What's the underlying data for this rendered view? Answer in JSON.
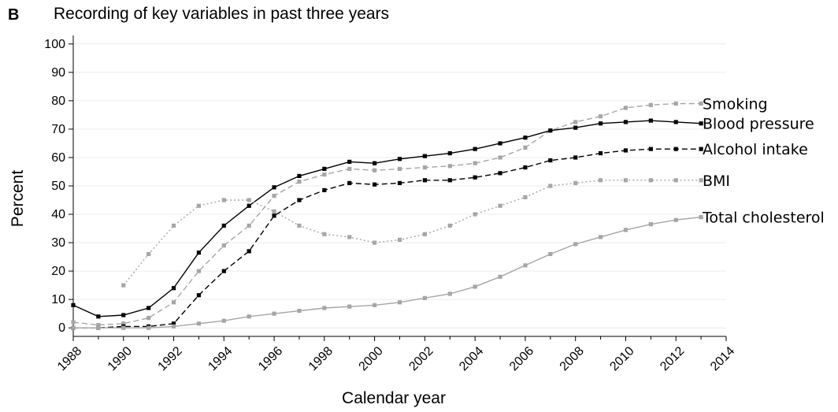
{
  "panel_label": "B",
  "chart_data": {
    "type": "line",
    "title": "Recording of key variables in past three years",
    "xlabel": "Calendar year",
    "ylabel": "Percent",
    "xlim": [
      1988,
      2014
    ],
    "ylim": [
      -3,
      103
    ],
    "xticks": [
      1988,
      1990,
      1992,
      1994,
      1996,
      1998,
      2000,
      2002,
      2004,
      2006,
      2008,
      2010,
      2012,
      2014
    ],
    "yticks": [
      0,
      10,
      20,
      30,
      40,
      50,
      60,
      70,
      80,
      90,
      100
    ],
    "grid": true,
    "legend": "direct labels at right end of lines",
    "series": [
      {
        "name": "Smoking",
        "color": "#a6a6a6",
        "line_style": "dashed",
        "x": [
          1988,
          1989,
          1990,
          1991,
          1992,
          1993,
          1994,
          1995,
          1996,
          1997,
          1998,
          1999,
          2000,
          2001,
          2002,
          2003,
          2004,
          2005,
          2006,
          2007,
          2008,
          2009,
          2010,
          2011,
          2012,
          2013
        ],
        "values": [
          2,
          1,
          1.5,
          3.5,
          9,
          20,
          29,
          36,
          46.5,
          51.5,
          54,
          56,
          55.5,
          56,
          56.5,
          57,
          58,
          60,
          63.5,
          69.5,
          72.5,
          74.5,
          77.5,
          78.5,
          79,
          79
        ]
      },
      {
        "name": "Blood pressure",
        "color": "#000000",
        "line_style": "solid",
        "x": [
          1988,
          1989,
          1990,
          1991,
          1992,
          1993,
          1994,
          1995,
          1996,
          1997,
          1998,
          1999,
          2000,
          2001,
          2002,
          2003,
          2004,
          2005,
          2006,
          2007,
          2008,
          2009,
          2010,
          2011,
          2012,
          2013
        ],
        "values": [
          8,
          4,
          4.5,
          7,
          14,
          26.5,
          36,
          43,
          49.5,
          53.5,
          56,
          58.5,
          58,
          59.5,
          60.5,
          61.5,
          63,
          65,
          67,
          69.5,
          70.5,
          72,
          72.5,
          73,
          72.5,
          72
        ]
      },
      {
        "name": "Alcohol intake",
        "color": "#000000",
        "line_style": "dashed",
        "x": [
          1988,
          1989,
          1990,
          1991,
          1992,
          1993,
          1994,
          1995,
          1996,
          1997,
          1998,
          1999,
          2000,
          2001,
          2002,
          2003,
          2004,
          2005,
          2006,
          2007,
          2008,
          2009,
          2010,
          2011,
          2012,
          2013
        ],
        "values": [
          0,
          0,
          0.5,
          0.5,
          1.5,
          11.5,
          20,
          27,
          39.5,
          45,
          48.5,
          51,
          50.5,
          51,
          52,
          52,
          53,
          54.5,
          56.5,
          59,
          60,
          61.5,
          62.5,
          63,
          63,
          63
        ]
      },
      {
        "name": "BMI",
        "color": "#a6a6a6",
        "line_style": "dotted",
        "x": [
          1990,
          1991,
          1992,
          1993,
          1994,
          1995,
          1996,
          1997,
          1998,
          1999,
          2000,
          2001,
          2002,
          2003,
          2004,
          2005,
          2006,
          2007,
          2008,
          2009,
          2010,
          2011,
          2012,
          2013
        ],
        "values": [
          15,
          26,
          36,
          43,
          45,
          45,
          41,
          36,
          33,
          32,
          30,
          31,
          33,
          36,
          40,
          43,
          46,
          50,
          51,
          52,
          52,
          52,
          52,
          52
        ]
      },
      {
        "name": "Total cholesterol",
        "color": "#a6a6a6",
        "line_style": "solid",
        "x": [
          1988,
          1989,
          1990,
          1991,
          1992,
          1993,
          1994,
          1995,
          1996,
          1997,
          1998,
          1999,
          2000,
          2001,
          2002,
          2003,
          2004,
          2005,
          2006,
          2007,
          2008,
          2009,
          2010,
          2011,
          2012,
          2013
        ],
        "values": [
          0,
          0,
          0,
          0,
          0.5,
          1.5,
          2.5,
          4,
          5,
          6,
          7,
          7.5,
          8,
          9,
          10.5,
          12,
          14.5,
          18,
          22,
          26,
          29.5,
          32,
          34.5,
          36.5,
          38,
          39
        ]
      }
    ]
  }
}
